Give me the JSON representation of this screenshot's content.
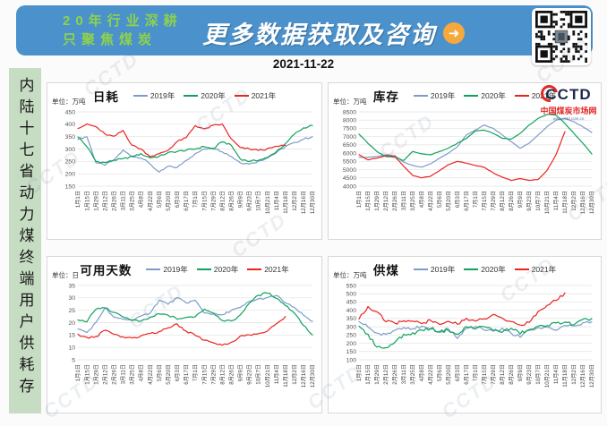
{
  "header": {
    "tagline_line1": "20年行业深耕",
    "tagline_line2": "只聚焦煤炭",
    "main_title": "更多数据获取及咨询",
    "arrow_icon": "➜"
  },
  "date": "2021-11-22",
  "sidebar": {
    "vertical_title": "内陆十七省动力煤终端用户供耗存"
  },
  "logo": {
    "name": "CCTD",
    "site_name": "中国煤炭市场网",
    "url": "www.cctd.com.cn"
  },
  "watermark_text": "CCTD",
  "colors": {
    "header_bg": "#4b92cc",
    "header_green": "#8fd24a",
    "accent_orange": "#f6a83c",
    "sidebar_bg": "#c6dcc3",
    "logo_red": "#e32726",
    "series_2019": "#7d9cc9",
    "series_2020": "#0fa25b",
    "series_2021": "#e8251f"
  },
  "chart_data": [
    {
      "type": "line",
      "title": "日耗",
      "unit_label": "单位：万吨",
      "ylim": [
        150,
        450
      ],
      "ystep": 50,
      "grid": true,
      "legend_position": "top",
      "categories": [
        "1月1日",
        "1月15日",
        "1月29日",
        "2月12日",
        "2月26日",
        "3月11日",
        "3月25日",
        "4月8日",
        "4月22日",
        "5月6日",
        "5月20日",
        "6月3日",
        "6月17日",
        "7月1日",
        "7月15日",
        "7月29日",
        "8月12日",
        "8月26日",
        "9月9日",
        "9月23日",
        "10月7日",
        "10月21日",
        "11月4日",
        "11月18日",
        "12月2日",
        "12月16日",
        "12月30日"
      ],
      "series": [
        {
          "name": "2019年",
          "color": "#7d9cc9",
          "values": [
            340,
            350,
            245,
            235,
            255,
            295,
            270,
            265,
            240,
            205,
            230,
            225,
            255,
            280,
            300,
            305,
            290,
            270,
            245,
            240,
            250,
            265,
            285,
            310,
            325,
            340,
            350
          ]
        },
        {
          "name": "2020年",
          "color": "#0fa25b",
          "values": [
            350,
            310,
            250,
            245,
            255,
            260,
            270,
            280,
            265,
            270,
            285,
            290,
            295,
            300,
            310,
            300,
            330,
            315,
            260,
            250,
            255,
            265,
            290,
            320,
            360,
            385,
            395
          ]
        },
        {
          "name": "2021年",
          "color": "#e8251f",
          "values": [
            385,
            400,
            390,
            360,
            350,
            375,
            315,
            300,
            270,
            280,
            295,
            330,
            345,
            395,
            380,
            395,
            400,
            340,
            305,
            300,
            295,
            300,
            310,
            315,
            null,
            null,
            null
          ]
        }
      ]
    },
    {
      "type": "line",
      "title": "库存",
      "unit_label": "单位：万吨",
      "ylim": [
        4000,
        8500
      ],
      "ystep": 500,
      "grid": true,
      "legend_position": "top",
      "categories": [
        "1月1日",
        "1月15日",
        "1月29日",
        "2月12日",
        "2月26日",
        "3月11日",
        "3月25日",
        "4月8日",
        "4月22日",
        "5月6日",
        "5月20日",
        "6月3日",
        "6月17日",
        "7月1日",
        "7月15日",
        "7月29日",
        "8月12日",
        "8月26日",
        "9月9日",
        "9月23日",
        "10月7日",
        "10月21日",
        "11月4日",
        "11月18日",
        "12月2日",
        "12月16日",
        "12月30日"
      ],
      "series": [
        {
          "name": "2019年",
          "color": "#7d9cc9",
          "values": [
            5750,
            5750,
            5800,
            5900,
            5850,
            5450,
            5250,
            5150,
            5350,
            5700,
            6000,
            6400,
            7100,
            7400,
            7700,
            7500,
            7100,
            6700,
            6300,
            6600,
            7100,
            7600,
            8000,
            8100,
            7900,
            7600,
            7250
          ]
        },
        {
          "name": "2020年",
          "color": "#0fa25b",
          "values": [
            7150,
            6600,
            6100,
            5800,
            5750,
            5550,
            6100,
            5950,
            5900,
            6100,
            6300,
            6600,
            6900,
            7350,
            7400,
            7200,
            6900,
            6850,
            7200,
            7700,
            8100,
            8350,
            8300,
            7800,
            7200,
            6600,
            5950
          ]
        },
        {
          "name": "2021年",
          "color": "#e8251f",
          "values": [
            5900,
            5600,
            5700,
            5850,
            5800,
            5200,
            4650,
            4500,
            4600,
            4950,
            5300,
            5500,
            5400,
            5250,
            5150,
            4800,
            4550,
            4350,
            4450,
            4350,
            4400,
            4950,
            5900,
            7300,
            null,
            null,
            null
          ]
        }
      ]
    },
    {
      "type": "line",
      "title": "可用天数",
      "unit_label": "单位：日",
      "ylim": [
        5,
        35
      ],
      "ystep": 5,
      "grid": true,
      "legend_position": "top",
      "categories": [
        "1月1日",
        "1月15日",
        "1月29日",
        "2月12日",
        "2月26日",
        "3月11日",
        "3月25日",
        "4月8日",
        "4月22日",
        "5月6日",
        "5月20日",
        "6月3日",
        "6月17日",
        "7月1日",
        "7月15日",
        "7月29日",
        "8月12日",
        "8月26日",
        "9月9日",
        "9月23日",
        "10月7日",
        "10月21日",
        "11月4日",
        "11月18日",
        "12月2日",
        "12月16日",
        "12月30日"
      ],
      "series": [
        {
          "name": "2019年",
          "color": "#7d9cc9",
          "values": [
            17.5,
            16,
            20,
            26,
            22,
            21.5,
            21,
            22.5,
            24,
            29,
            27.5,
            30,
            28,
            29,
            24,
            23.5,
            23,
            25,
            26,
            28.5,
            29.5,
            30,
            31,
            28,
            26,
            23,
            20.5
          ]
        },
        {
          "name": "2020年",
          "color": "#0fa25b",
          "values": [
            21,
            20.5,
            25.5,
            26,
            24,
            22.5,
            21,
            20.5,
            22,
            23.5,
            23,
            21.5,
            22,
            22.5,
            25.5,
            24,
            21,
            20.5,
            23,
            28,
            31,
            32,
            30,
            27,
            24,
            19,
            15
          ]
        },
        {
          "name": "2021年",
          "color": "#e8251f",
          "values": [
            15.2,
            13.9,
            14.2,
            17,
            15.5,
            14.2,
            13.8,
            14.5,
            15.8,
            16.2,
            18,
            19.3,
            16.5,
            15,
            13,
            12,
            10.8,
            12,
            14.5,
            15,
            15.5,
            16.5,
            19.5,
            22.5,
            null,
            null,
            null
          ]
        }
      ]
    },
    {
      "type": "line",
      "title": "供煤",
      "unit_label": "单位：万吨",
      "ylim": [
        100,
        550
      ],
      "ystep": 50,
      "grid": true,
      "legend_position": "top",
      "categories": [
        "1月1日",
        "1月15日",
        "1月29日",
        "2月12日",
        "2月26日",
        "3月11日",
        "3月25日",
        "4月8日",
        "4月22日",
        "5月6日",
        "5月20日",
        "6月3日",
        "6月17日",
        "7月1日",
        "7月15日",
        "7月29日",
        "8月12日",
        "8月26日",
        "9月9日",
        "9月23日",
        "10月7日",
        "10月21日",
        "11月4日",
        "11月18日",
        "12月2日",
        "12月16日",
        "12月30日"
      ],
      "series": [
        {
          "name": "2019年",
          "color": "#7d9cc9",
          "values": [
            330,
            300,
            260,
            250,
            280,
            300,
            290,
            300,
            280,
            270,
            290,
            230,
            290,
            300,
            280,
            270,
            290,
            260,
            240,
            280,
            290,
            300,
            280,
            310,
            300,
            320,
            330
          ]
        },
        {
          "name": "2020年",
          "color": "#0fa25b",
          "values": [
            300,
            250,
            180,
            170,
            210,
            250,
            260,
            280,
            290,
            270,
            280,
            250,
            300,
            290,
            300,
            280,
            270,
            290,
            260,
            280,
            300,
            310,
            320,
            330,
            310,
            340,
            350
          ]
        },
        {
          "name": "2021年",
          "color": "#e8251f",
          "values": [
            350,
            420,
            390,
            330,
            320,
            340,
            330,
            320,
            340,
            310,
            330,
            320,
            350,
            330,
            350,
            370,
            350,
            330,
            310,
            330,
            390,
            430,
            460,
            505,
            null,
            null,
            null
          ]
        }
      ]
    }
  ]
}
